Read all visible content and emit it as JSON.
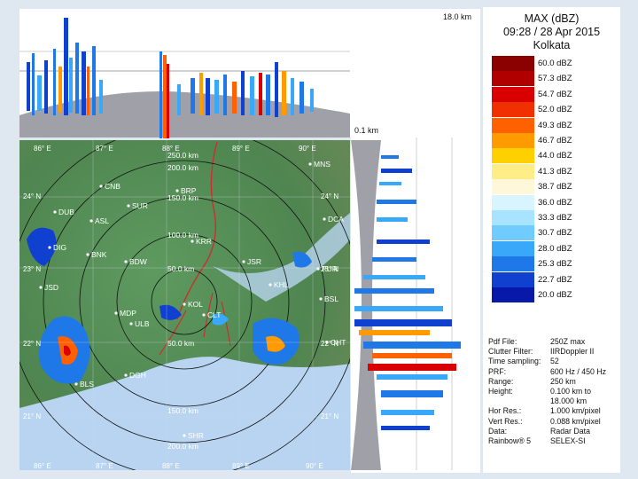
{
  "legend": {
    "title": "MAX (dBZ)",
    "datetime": "09:28 / 28 Apr 2015",
    "station": "Kolkata",
    "levels": [
      {
        "label": "60.0 dBZ",
        "color": "#8b0000"
      },
      {
        "label": "57.3 dBZ",
        "color": "#b00000"
      },
      {
        "label": "54.7 dBZ",
        "color": "#d80000"
      },
      {
        "label": "52.0 dBZ",
        "color": "#f03000"
      },
      {
        "label": "49.3 dBZ",
        "color": "#ff6000"
      },
      {
        "label": "46.7 dBZ",
        "color": "#ff9a00"
      },
      {
        "label": "44.0 dBZ",
        "color": "#ffd000"
      },
      {
        "label": "41.3 dBZ",
        "color": "#ffee88"
      },
      {
        "label": "38.7 dBZ",
        "color": "#fff8d8"
      },
      {
        "label": "36.0 dBZ",
        "color": "#d8f4ff"
      },
      {
        "label": "33.3 dBZ",
        "color": "#a8e4ff"
      },
      {
        "label": "30.7 dBZ",
        "color": "#70ccff"
      },
      {
        "label": "28.0 dBZ",
        "color": "#3aa8f8"
      },
      {
        "label": "25.3 dBZ",
        "color": "#1e78e8"
      },
      {
        "label": "22.7 dBZ",
        "color": "#1040d0"
      },
      {
        "label": "20.0 dBZ",
        "color": "#0818a8"
      }
    ]
  },
  "info": [
    {
      "key": "Pdf File:",
      "value": "250Z max"
    },
    {
      "key": "Clutter Filter:",
      "value": "IIRDoppler II"
    },
    {
      "key": "Time sampling:",
      "value": "52"
    },
    {
      "key": "PRF:",
      "value": "600 Hz / 450 Hz"
    },
    {
      "key": "Range:",
      "value": "250 km"
    },
    {
      "key": "Height:",
      "value": "0.100 km to"
    },
    {
      "key": "",
      "value": "18.000 km"
    },
    {
      "key": "Hor Res.:",
      "value": "1.000 km/pixel"
    },
    {
      "key": "Vert Res.:",
      "value": "0.088 km/pixel"
    },
    {
      "key": "Data:",
      "value": "Radar Data"
    },
    {
      "key": "Rainbow® 5",
      "value": "SELEX-SI"
    }
  ],
  "scale": {
    "top_max": "18.0 km",
    "side_min": "0.1 km"
  },
  "range_rings": [
    "250.0 km",
    "200.0 km",
    "150.0 km",
    "100.0 km",
    "50.0 km"
  ],
  "range_rings_south": [
    "50.0 km",
    "150.0 km",
    "200.0 km"
  ],
  "grid": {
    "lon_labels": [
      "86° E",
      "87° E",
      "88° E",
      "89° E",
      "90° E"
    ],
    "lon_labels_bottom": [
      "86° E",
      "87° E",
      "88° E",
      "89° E",
      "90° E"
    ],
    "lat_labels_left": [
      "24° N",
      "23° N",
      "22° N",
      "21° N"
    ],
    "lat_labels_right": [
      "24° N",
      "23° N",
      "22° N",
      "21° N"
    ]
  },
  "stations": [
    "MNS",
    "CNB",
    "BRP",
    "DUB",
    "ASL",
    "SUR",
    "DCA",
    "KRR",
    "DIG",
    "BNK",
    "BDW",
    "JSR",
    "KHL",
    "PUR",
    "JSD",
    "BSL",
    "MDP",
    "CLT",
    "ULB",
    "KOL",
    "BLS",
    "DGH",
    "SHR",
    "CHT"
  ]
}
